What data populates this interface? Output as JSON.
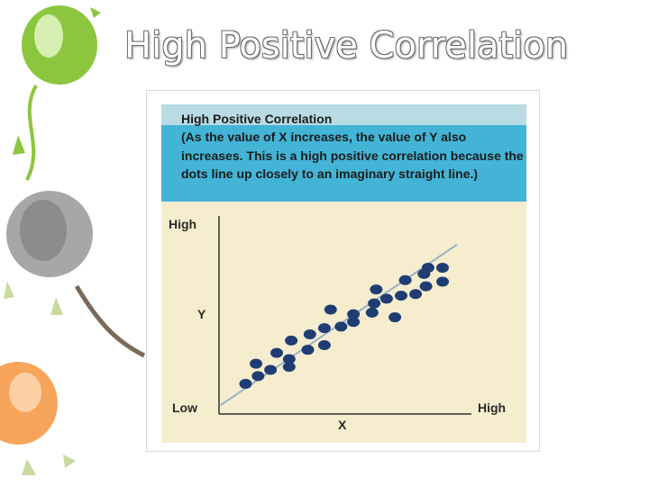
{
  "slide": {
    "title": "High Positive Correlation"
  },
  "theme": {
    "balloon_green": "#8cc63f",
    "balloon_gray": "#a7a7a7",
    "balloon_orange": "#f7a55a",
    "header_blue": "#43b4d6",
    "header_strip": "#b9dbe4",
    "panel_bg": "#f6edcf",
    "dot_color": "#1f3d73",
    "trend_line_color": "#9ab3c8"
  },
  "chart_data": {
    "type": "scatter",
    "title": "High Positive Correlation",
    "subtitle": "(As the value of X increases, the value of Y also increases. This is a high positive correlation because the dots line up closely to an imaginary straight line.)",
    "xlabel": "X",
    "ylabel": "Y",
    "x_tick_labels": {
      "low": "Low",
      "high": "High"
    },
    "y_tick_labels": {
      "high": "High"
    },
    "xlim": [
      0,
      10
    ],
    "ylim": [
      0,
      10
    ],
    "grid": false,
    "trend_line": {
      "x": [
        0,
        10
      ],
      "y": [
        0,
        9.2
      ]
    },
    "points": [
      {
        "x": 0.5,
        "y": 0.9
      },
      {
        "x": 1.1,
        "y": 1.4
      },
      {
        "x": 1.0,
        "y": 2.2
      },
      {
        "x": 1.7,
        "y": 1.8
      },
      {
        "x": 2.0,
        "y": 2.9
      },
      {
        "x": 2.6,
        "y": 2.0
      },
      {
        "x": 2.6,
        "y": 2.5
      },
      {
        "x": 2.7,
        "y": 3.7
      },
      {
        "x": 3.5,
        "y": 3.1
      },
      {
        "x": 3.6,
        "y": 4.1
      },
      {
        "x": 4.3,
        "y": 3.4
      },
      {
        "x": 4.3,
        "y": 4.5
      },
      {
        "x": 4.6,
        "y": 5.7
      },
      {
        "x": 5.1,
        "y": 4.6
      },
      {
        "x": 5.7,
        "y": 5.4
      },
      {
        "x": 5.7,
        "y": 4.9
      },
      {
        "x": 6.6,
        "y": 5.5
      },
      {
        "x": 6.7,
        "y": 6.1
      },
      {
        "x": 6.8,
        "y": 7.0
      },
      {
        "x": 7.3,
        "y": 6.4
      },
      {
        "x": 7.7,
        "y": 5.2
      },
      {
        "x": 8.0,
        "y": 6.6
      },
      {
        "x": 8.2,
        "y": 7.6
      },
      {
        "x": 8.7,
        "y": 6.7
      },
      {
        "x": 9.2,
        "y": 7.2
      },
      {
        "x": 9.3,
        "y": 8.4
      },
      {
        "x": 9.1,
        "y": 8.0
      },
      {
        "x": 10.0,
        "y": 8.4
      },
      {
        "x": 10.0,
        "y": 7.5
      }
    ]
  }
}
